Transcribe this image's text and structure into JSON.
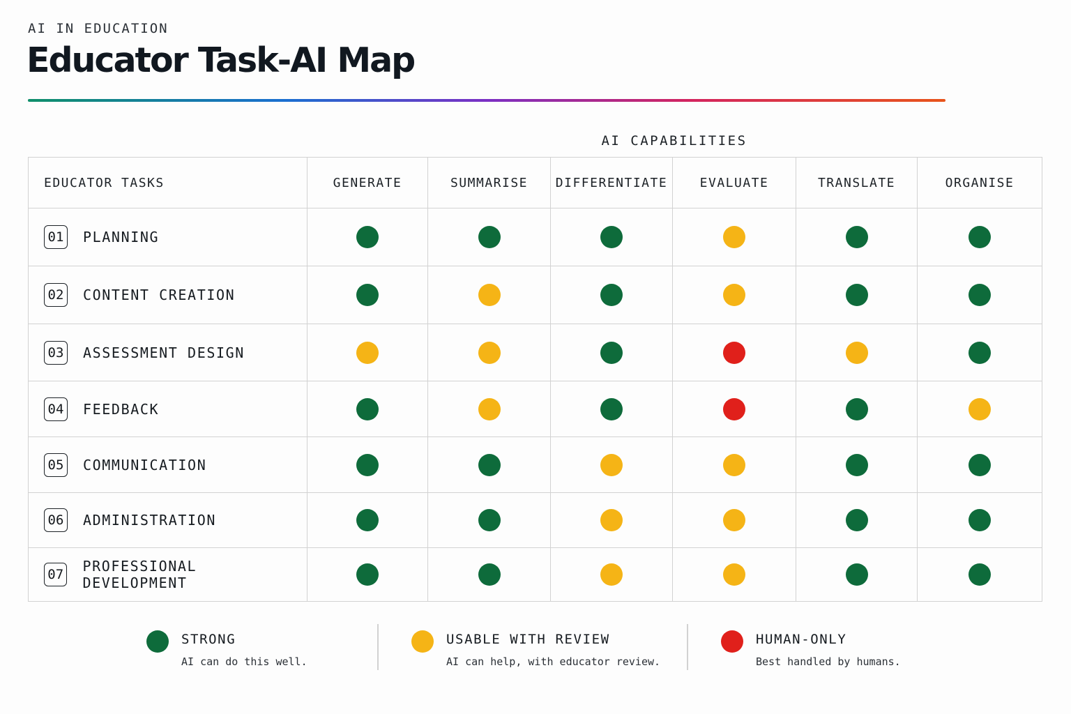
{
  "eyebrow": "AI IN EDUCATION",
  "title": "Educator Task-AI Map",
  "capabilities_header": "AI CAPABILITIES",
  "tasks_header": "EDUCATOR TASKS",
  "capabilities": [
    "GENERATE",
    "SUMMARISE",
    "DIFFERENTIATE",
    "EVALUATE",
    "TRANSLATE",
    "ORGANISE"
  ],
  "colors": {
    "strong": "#0e6b3b",
    "review": "#f5b416",
    "human": "#e0201b"
  },
  "tasks": [
    {
      "number": "01",
      "label": "PLANNING",
      "ratings": [
        "strong",
        "strong",
        "strong",
        "review",
        "strong",
        "strong"
      ]
    },
    {
      "number": "02",
      "label": "CONTENT CREATION",
      "ratings": [
        "strong",
        "review",
        "strong",
        "review",
        "strong",
        "strong"
      ]
    },
    {
      "number": "03",
      "label": "ASSESSMENT DESIGN",
      "ratings": [
        "review",
        "review",
        "strong",
        "human",
        "review",
        "strong"
      ]
    },
    {
      "number": "04",
      "label": "FEEDBACK",
      "ratings": [
        "strong",
        "review",
        "strong",
        "human",
        "strong",
        "review"
      ]
    },
    {
      "number": "05",
      "label": "COMMUNICATION",
      "ratings": [
        "strong",
        "strong",
        "review",
        "review",
        "strong",
        "strong"
      ]
    },
    {
      "number": "06",
      "label": "ADMINISTRATION",
      "ratings": [
        "strong",
        "strong",
        "review",
        "review",
        "strong",
        "strong"
      ]
    },
    {
      "number": "07",
      "label": "PROFESSIONAL DEVELOPMENT",
      "ratings": [
        "strong",
        "strong",
        "review",
        "review",
        "strong",
        "strong"
      ]
    }
  ],
  "legend": [
    {
      "key": "strong",
      "title": "STRONG",
      "description": "AI can do this well."
    },
    {
      "key": "review",
      "title": "USABLE WITH REVIEW",
      "description": "AI can help, with educator review."
    },
    {
      "key": "human",
      "title": "HUMAN-ONLY",
      "description": "Best handled by humans."
    }
  ]
}
